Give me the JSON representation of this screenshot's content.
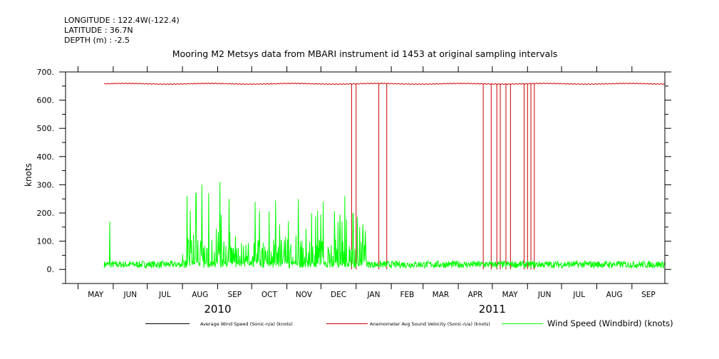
{
  "header": {
    "longitude": "LONGITUDE : 122.4W(-122.4)",
    "latitude": "LATITUDE : 36.7N",
    "depth": "DEPTH (m) : -2.5",
    "title": "Mooring M2 Metsys data from MBARI instrument id 1453 at original sampling intervals"
  },
  "chart_data": {
    "type": "line",
    "title": "Mooring M2 Metsys data from MBARI instrument id 1453 at original sampling intervals",
    "xlabel": "",
    "ylabel": "knots",
    "ylim": [
      -50,
      700
    ],
    "yticks": [
      0,
      100,
      200,
      300,
      400,
      500,
      600,
      700
    ],
    "ytick_labels": [
      "0.",
      "100.",
      "200.",
      "300.",
      "400.",
      "500.",
      "600.",
      "700."
    ],
    "xlim": [
      "2010-04-20",
      "2011-09-30"
    ],
    "month_labels": [
      "MAY",
      "JUN",
      "JUL",
      "AUG",
      "SEP",
      "OCT",
      "NOV",
      "DEC",
      "JAN",
      "FEB",
      "MAR",
      "APR",
      "MAY",
      "JUN",
      "JUL",
      "AUG",
      "SEP"
    ],
    "year_labels": [
      "2010",
      "2011"
    ],
    "data_start": "2010-05-24",
    "data_end": "2011-09-30",
    "series": [
      {
        "name": "Average Wind Speed (Sonic-n/a) (knots)",
        "color": "#000000",
        "values": []
      },
      {
        "name": "Anemometer Avg Sound Velocity (Sonic-n/a) (knots)",
        "color": "#cc0000",
        "baseline": 658,
        "dropout_dates": [
          "2010-12-28",
          "2011-01-01",
          "2011-01-21",
          "2011-01-28",
          "2011-04-23",
          "2011-04-30",
          "2011-05-05",
          "2011-05-08",
          "2011-05-13",
          "2011-05-17",
          "2011-05-29",
          "2011-06-01",
          "2011-06-04",
          "2011-06-07"
        ]
      },
      {
        "name": "Wind Speed (Windbird) (knots)",
        "color": "#00ff00",
        "typical_range": [
          0,
          40
        ],
        "spike_dates": [
          "2010-05-29",
          "2010-08-05",
          "2010-08-13",
          "2010-08-18",
          "2010-08-24",
          "2010-09-03",
          "2010-09-11",
          "2010-10-04",
          "2010-10-22",
          "2010-11-11",
          "2010-12-03",
          "2010-12-22",
          "2010-12-29",
          "2011-01-04"
        ],
        "spike_values": [
          170,
          260,
          270,
          300,
          270,
          310,
          250,
          240,
          245,
          250,
          240,
          260,
          200,
          150
        ]
      }
    ]
  },
  "legend": {
    "items": [
      {
        "label": "Average Wind Speed (Sonic-n/a) (knots)",
        "color": "#000000"
      },
      {
        "label": "Anemometer Avg Sound Velocity (Sonic-n/a) (knots)",
        "color": "#cc0000"
      },
      {
        "label": "Wind Speed (Windbird) (knots)",
        "color": "#00ff00"
      }
    ]
  }
}
